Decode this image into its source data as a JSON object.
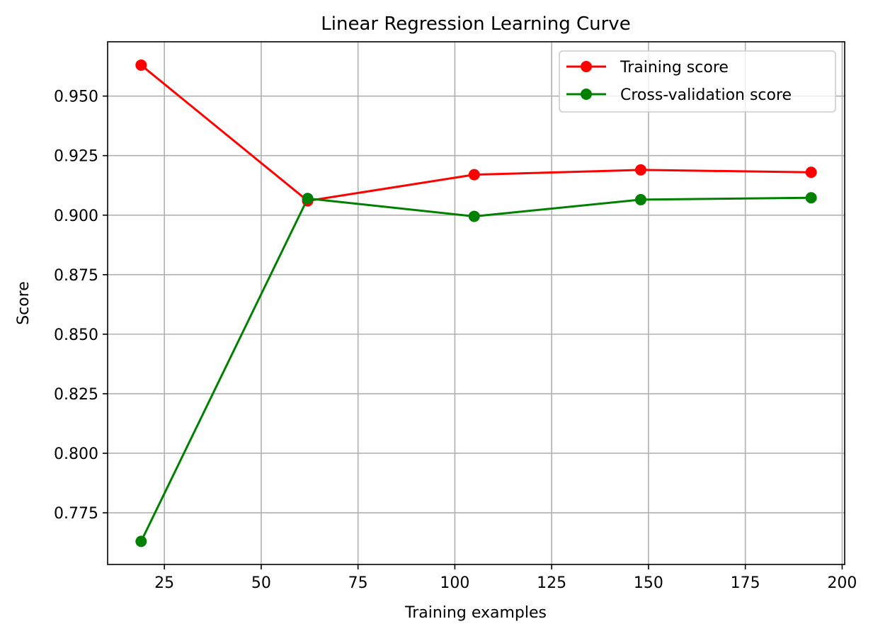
{
  "chart_data": {
    "type": "line",
    "title": "Linear Regression Learning Curve",
    "xlabel": "Training examples",
    "ylabel": "Score",
    "xlim": [
      10.35,
      200.65
    ],
    "ylim": [
      0.7533,
      0.9728
    ],
    "x_ticks": [
      25,
      50,
      75,
      100,
      125,
      150,
      175,
      200
    ],
    "y_ticks": [
      0.775,
      0.8,
      0.825,
      0.85,
      0.875,
      0.9,
      0.925,
      0.95
    ],
    "x_tick_labels": [
      "25",
      "50",
      "75",
      "100",
      "125",
      "150",
      "175",
      "200"
    ],
    "y_tick_labels": [
      "0.775",
      "0.800",
      "0.825",
      "0.850",
      "0.875",
      "0.900",
      "0.925",
      "0.950"
    ],
    "grid": true,
    "legend_position": "top-right",
    "x": [
      19,
      62,
      105,
      148,
      192
    ],
    "series": [
      {
        "name": "Training score",
        "color": "#ff0000",
        "marker": "circle",
        "values": [
          0.963,
          0.906,
          0.917,
          0.919,
          0.918
        ]
      },
      {
        "name": "Cross-validation score",
        "color": "#008000",
        "marker": "circle",
        "values": [
          0.763,
          0.907,
          0.8995,
          0.9065,
          0.9073
        ]
      }
    ]
  }
}
